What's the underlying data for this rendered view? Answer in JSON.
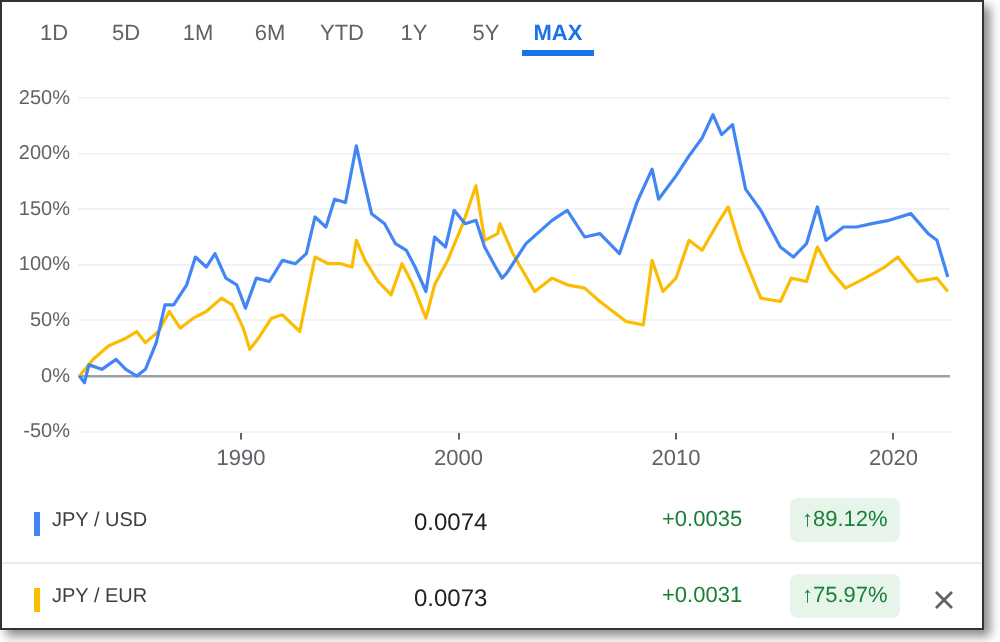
{
  "chart_data": {
    "type": "line",
    "annotations": [
      "1D",
      "5D",
      "1M",
      "6M",
      "YTD",
      "1Y",
      "5Y",
      "MAX",
      "0.0074",
      "+0.0035",
      "↑89.12%",
      "0.0073",
      "+0.0031",
      "↑75.97%"
    ],
    "series": [
      {
        "name": "JPY / USD",
        "color": "#4285f4",
        "x": [
          1982.57,
          1982.8,
          1983.0,
          1983.6,
          1984.25,
          1984.7,
          1985.2,
          1985.6,
          1986.1,
          1986.5,
          1986.9,
          1987.5,
          1987.9,
          1988.4,
          1988.8,
          1989.3,
          1989.8,
          1990.2,
          1990.7,
          1991.3,
          1991.9,
          1992.5,
          1993.0,
          1993.4,
          1993.9,
          1994.3,
          1994.8,
          1995.3,
          1995.6,
          1996.0,
          1996.6,
          1997.1,
          1997.6,
          1998.0,
          1998.5,
          1998.9,
          1999.4,
          1999.8,
          2000.3,
          2000.8,
          2001.2,
          2001.7,
          2002.0,
          2002.2,
          2003.1,
          2004.3,
          2005.0,
          2005.8,
          2006.5,
          2007.4,
          2008.2,
          2008.9,
          2009.2,
          2010.0,
          2010.6,
          2011.2,
          2011.7,
          2012.1,
          2012.6,
          2013.2,
          2013.9,
          2014.8,
          2015.4,
          2016.0,
          2016.5,
          2016.9,
          2017.7,
          2018.3,
          2019.0,
          2019.8,
          2020.8,
          2021.6,
          2022.0,
          2022.5
        ],
        "values": [
          0,
          -6,
          10,
          6,
          15,
          6,
          0,
          6,
          30,
          64,
          64,
          82,
          107,
          98,
          110,
          88,
          82,
          61,
          88,
          85,
          104,
          101,
          110,
          143,
          134,
          159,
          156,
          207,
          180,
          146,
          137,
          119,
          113,
          98,
          76,
          125,
          116,
          149,
          137,
          140,
          116,
          98,
          88,
          92,
          119,
          140,
          149,
          125,
          128,
          110,
          156,
          186,
          159,
          180,
          198,
          214,
          235,
          217,
          226,
          168,
          149,
          116,
          107,
          119,
          152,
          122,
          134,
          134,
          137,
          140,
          146,
          128,
          122,
          89
        ]
      },
      {
        "name": "JPY / EUR",
        "color": "#fbbc04",
        "x": [
          1982.57,
          1983.2,
          1983.9,
          1984.7,
          1985.2,
          1985.6,
          1986.2,
          1986.7,
          1987.2,
          1987.8,
          1988.4,
          1989.1,
          1989.6,
          1990.1,
          1990.4,
          1990.8,
          1991.4,
          1991.9,
          1992.7,
          1993.4,
          1994.0,
          1994.6,
          1995.1,
          1995.3,
          1995.7,
          1996.3,
          1996.9,
          1997.4,
          1997.9,
          1998.5,
          1998.9,
          1999.5,
          2000.2,
          2000.8,
          2001.2,
          2001.8,
          2001.9,
          2002.5,
          2003.5,
          2004.3,
          2005.0,
          2005.8,
          2006.5,
          2007.3,
          2007.7,
          2008.5,
          2008.9,
          2009.4,
          2010.0,
          2010.6,
          2011.2,
          2012.0,
          2012.4,
          2013.0,
          2013.9,
          2014.8,
          2015.3,
          2016.0,
          2016.5,
          2017.1,
          2017.8,
          2018.7,
          2019.6,
          2020.2,
          2021.1,
          2022.0,
          2022.5
        ],
        "values": [
          0,
          15,
          27,
          34,
          40,
          30,
          40,
          58,
          43,
          52,
          58,
          70,
          64,
          43,
          24,
          34,
          52,
          55,
          40,
          107,
          101,
          101,
          98,
          122,
          104,
          85,
          73,
          101,
          82,
          52,
          82,
          104,
          137,
          171,
          122,
          128,
          137,
          110,
          76,
          88,
          82,
          79,
          67,
          55,
          49,
          46,
          104,
          76,
          88,
          122,
          113,
          140,
          152,
          113,
          70,
          67,
          88,
          85,
          116,
          95,
          79,
          88,
          98,
          107,
          85,
          88,
          76
        ]
      }
    ],
    "xlim": [
      1982.5,
      2022.6
    ],
    "xticks": [
      1990,
      2000,
      2010,
      2020
    ],
    "ylim": [
      -50,
      250
    ],
    "yticks": [
      {
        "value": -50,
        "label": "-50%"
      },
      {
        "value": 0,
        "label": "0%"
      },
      {
        "value": 50,
        "label": "50%"
      },
      {
        "value": 100,
        "label": "100%"
      },
      {
        "value": 150,
        "label": "150%"
      },
      {
        "value": 200,
        "label": "200%"
      },
      {
        "value": 250,
        "label": "250%"
      }
    ],
    "grid": "y",
    "legend": "bottom",
    "marker": "none",
    "line_style": "solid"
  }
}
